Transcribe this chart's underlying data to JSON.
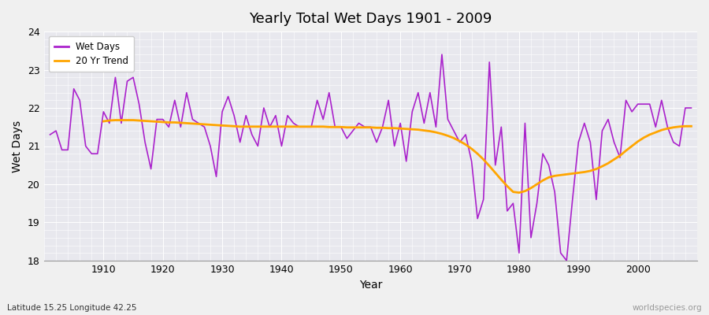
{
  "title": "Yearly Total Wet Days 1901 - 2009",
  "xlabel": "Year",
  "ylabel": "Wet Days",
  "subtitle": "Latitude 15.25 Longitude 42.25",
  "watermark": "worldspecies.org",
  "ylim": [
    18,
    24
  ],
  "yticks": [
    18,
    19,
    20,
    21,
    22,
    23,
    24
  ],
  "line_color": "#aa22cc",
  "trend_color": "#ffa500",
  "fig_bg_color": "#f0f0f0",
  "plot_bg_color": "#e8e8ee",
  "years": [
    1901,
    1902,
    1903,
    1904,
    1905,
    1906,
    1907,
    1908,
    1909,
    1910,
    1911,
    1912,
    1913,
    1914,
    1915,
    1916,
    1917,
    1918,
    1919,
    1920,
    1921,
    1922,
    1923,
    1924,
    1925,
    1926,
    1927,
    1928,
    1929,
    1930,
    1931,
    1932,
    1933,
    1934,
    1935,
    1936,
    1937,
    1938,
    1939,
    1940,
    1941,
    1942,
    1943,
    1944,
    1945,
    1946,
    1947,
    1948,
    1949,
    1950,
    1951,
    1952,
    1953,
    1954,
    1955,
    1956,
    1957,
    1958,
    1959,
    1960,
    1961,
    1962,
    1963,
    1964,
    1965,
    1966,
    1967,
    1968,
    1969,
    1970,
    1971,
    1972,
    1973,
    1974,
    1975,
    1976,
    1977,
    1978,
    1979,
    1980,
    1981,
    1982,
    1983,
    1984,
    1985,
    1986,
    1987,
    1988,
    1989,
    1990,
    1991,
    1992,
    1993,
    1994,
    1995,
    1996,
    1997,
    1998,
    1999,
    2000,
    2001,
    2002,
    2003,
    2004,
    2005,
    2006,
    2007,
    2008,
    2009
  ],
  "wet_days": [
    21.3,
    21.4,
    20.9,
    20.9,
    22.5,
    22.2,
    21.0,
    20.8,
    20.8,
    21.9,
    21.6,
    22.8,
    21.6,
    22.7,
    22.8,
    22.1,
    21.1,
    20.4,
    21.7,
    21.7,
    21.5,
    22.2,
    21.5,
    22.4,
    21.7,
    21.6,
    21.5,
    21.0,
    20.2,
    21.9,
    22.3,
    21.8,
    21.1,
    21.8,
    21.3,
    21.0,
    22.0,
    21.5,
    21.8,
    21.0,
    21.8,
    21.6,
    21.5,
    21.5,
    21.5,
    22.2,
    21.7,
    22.4,
    21.5,
    21.5,
    21.2,
    21.4,
    21.6,
    21.5,
    21.5,
    21.1,
    21.5,
    22.2,
    21.0,
    21.6,
    20.6,
    21.9,
    22.4,
    21.6,
    22.4,
    21.5,
    23.4,
    21.7,
    21.4,
    21.1,
    21.3,
    20.6,
    19.1,
    19.6,
    23.2,
    20.5,
    21.5,
    19.3,
    19.5,
    18.2,
    21.6,
    18.6,
    19.5,
    20.8,
    20.5,
    19.8,
    18.2,
    18.0,
    19.6,
    21.1,
    21.6,
    21.1,
    19.6,
    21.4,
    21.7,
    21.1,
    20.7,
    22.2,
    21.9,
    22.1,
    22.1,
    22.1,
    21.5,
    22.2,
    21.5,
    21.1,
    21.0,
    22.0,
    22.0
  ],
  "trend_years": [
    1910,
    1911,
    1912,
    1913,
    1914,
    1915,
    1916,
    1917,
    1918,
    1919,
    1920,
    1921,
    1922,
    1923,
    1924,
    1925,
    1926,
    1927,
    1928,
    1929,
    1930,
    1931,
    1932,
    1933,
    1934,
    1935,
    1936,
    1937,
    1938,
    1939,
    1940,
    1941,
    1942,
    1943,
    1944,
    1945,
    1946,
    1947,
    1948,
    1949,
    1950,
    1951,
    1952,
    1953,
    1954,
    1955,
    1956,
    1957,
    1958,
    1959,
    1960,
    1961,
    1962,
    1963,
    1964,
    1965,
    1966,
    1967,
    1968,
    1969,
    1970,
    1971,
    1972,
    1973,
    1974,
    1975,
    1976,
    1977,
    1978,
    1979,
    1980,
    1981,
    1982,
    1983,
    1984,
    1985,
    1986,
    1987,
    1988,
    1989,
    1990,
    1991,
    1992,
    1993,
    1994,
    1995,
    1996,
    1997,
    1998,
    1999,
    2000,
    2001,
    2002,
    2003,
    2004,
    2005,
    2006,
    2007,
    2008,
    2009
  ],
  "trend_values": [
    21.65,
    21.67,
    21.68,
    21.68,
    21.68,
    21.68,
    21.67,
    21.66,
    21.65,
    21.64,
    21.63,
    21.62,
    21.62,
    21.61,
    21.6,
    21.59,
    21.58,
    21.57,
    21.56,
    21.55,
    21.54,
    21.53,
    21.52,
    21.51,
    21.51,
    21.51,
    21.51,
    21.51,
    21.51,
    21.51,
    21.51,
    21.51,
    21.51,
    21.51,
    21.51,
    21.51,
    21.51,
    21.51,
    21.5,
    21.5,
    21.5,
    21.49,
    21.49,
    21.49,
    21.49,
    21.49,
    21.48,
    21.48,
    21.47,
    21.47,
    21.46,
    21.45,
    21.44,
    21.43,
    21.41,
    21.39,
    21.36,
    21.32,
    21.27,
    21.21,
    21.13,
    21.04,
    20.93,
    20.8,
    20.65,
    20.48,
    20.3,
    20.12,
    19.95,
    19.8,
    19.78,
    19.82,
    19.9,
    20.0,
    20.1,
    20.18,
    20.22,
    20.24,
    20.26,
    20.28,
    20.3,
    20.32,
    20.35,
    20.4,
    20.47,
    20.55,
    20.65,
    20.75,
    20.88,
    21.0,
    21.12,
    21.22,
    21.3,
    21.36,
    21.42,
    21.46,
    21.49,
    21.51,
    21.52,
    21.52
  ]
}
